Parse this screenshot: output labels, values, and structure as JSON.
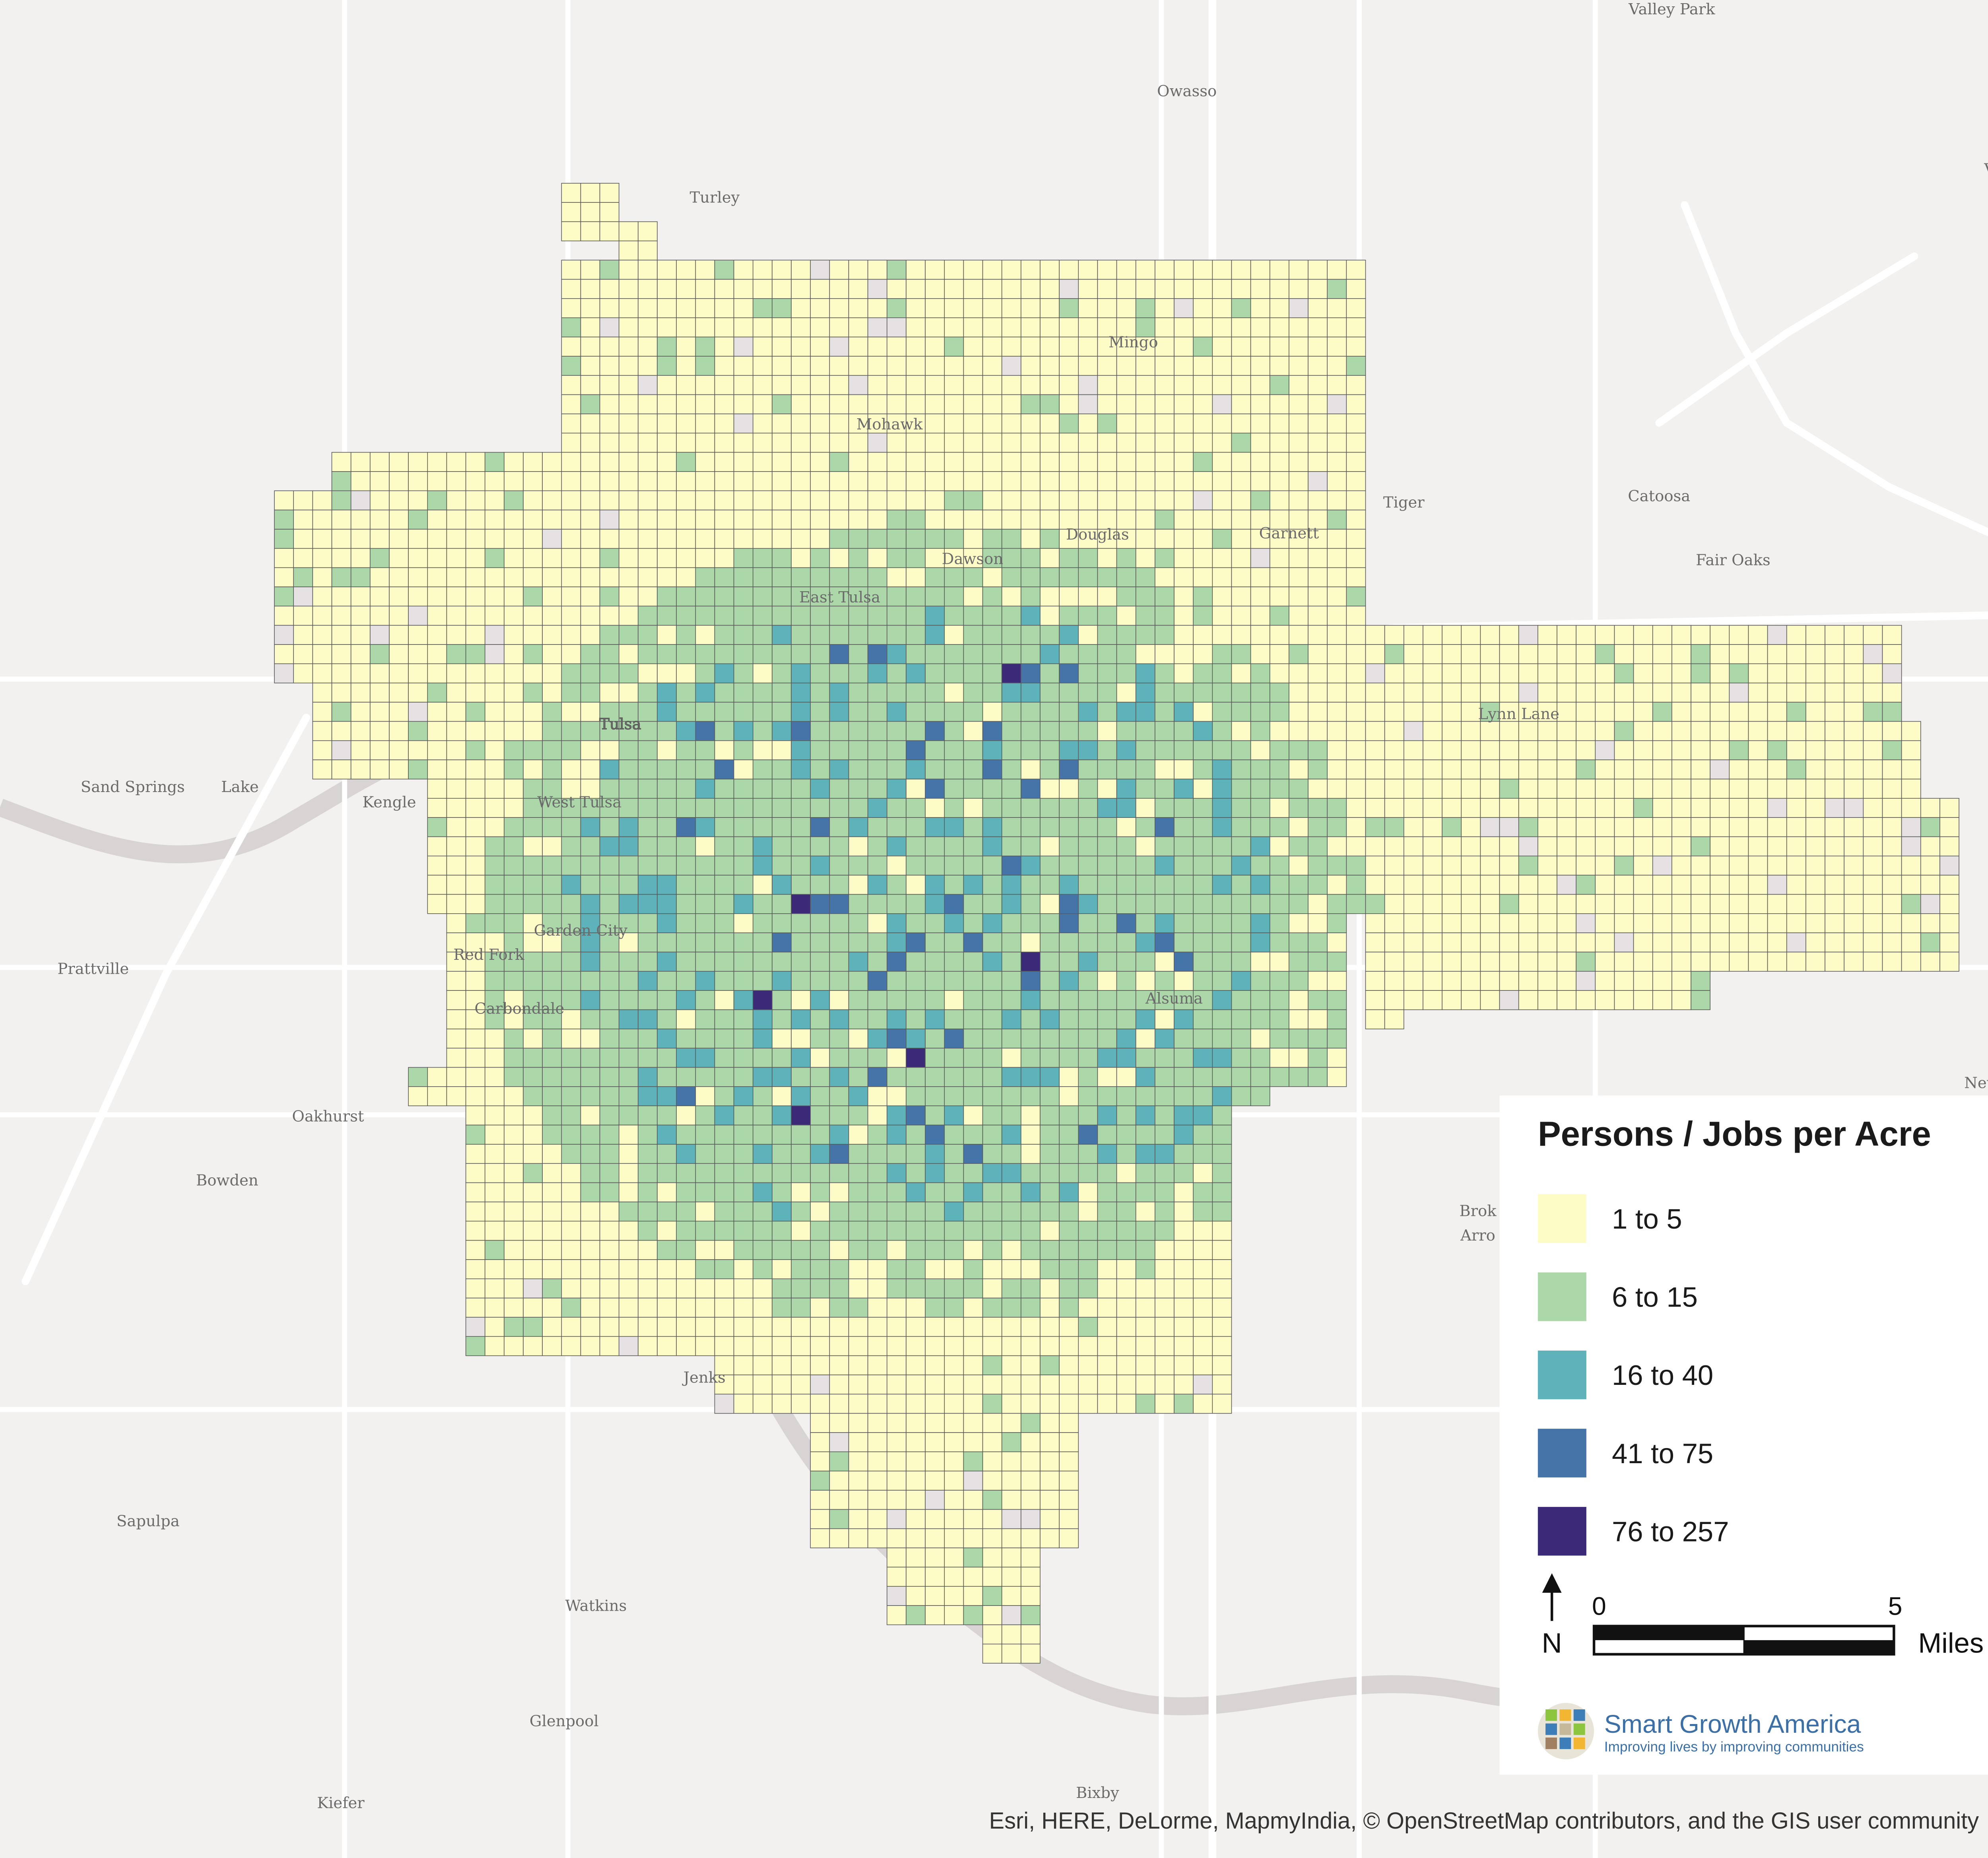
{
  "map": {
    "places": [
      "Valley Park",
      "Owasso",
      "Turley",
      "Mingo",
      "Mohawk",
      "Tiger",
      "Catoosa",
      "Fair Oaks",
      "Douglas",
      "Garnett",
      "Dawson",
      "East Tulsa",
      "Tulsa",
      "Sand Springs",
      "Lake",
      "Kengle",
      "West Tulsa",
      "Lynn Lane",
      "Garden City",
      "Red Fork",
      "Prattville",
      "Carbondale",
      "Alsuma",
      "Oakhurst",
      "Bowden",
      "Brok",
      "Arro",
      "Jenks",
      "Sapulpa",
      "Watkins",
      "Glenpool",
      "Bixby",
      "Kiefer",
      "New",
      "Ve"
    ],
    "legend": {
      "title": "Persons / Jobs per Acre",
      "classes": [
        {
          "label": "1 to 5",
          "color": "#fdfbc6"
        },
        {
          "label": "6 to 15",
          "color": "#abd7a9"
        },
        {
          "label": "16 to 40",
          "color": "#5eb3ba"
        },
        {
          "label": "41 to 75",
          "color": "#4575a8"
        },
        {
          "label": "76 to 257",
          "color": "#3a2a78"
        }
      ]
    },
    "north": "N",
    "scale_bar": {
      "ticks": [
        0,
        5
      ],
      "unit": "Miles"
    },
    "logo": {
      "name": "Smart Growth America",
      "tagline": "Improving lives by improving communities"
    },
    "attribution": "Esri, HERE, DeLorme, MapmyIndia, © OpenStreetMap contributors, and the GIS user community"
  }
}
